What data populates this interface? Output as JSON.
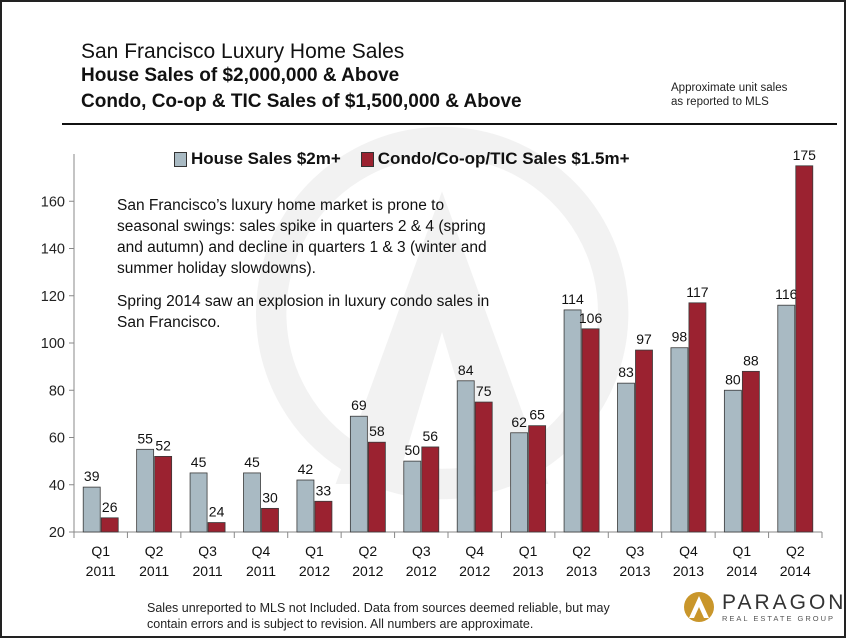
{
  "title": "San Francisco Luxury Home Sales",
  "subtitle1": "House Sales of $2,000,000 & Above",
  "subtitle2": "Condo, Co-op & TIC Sales of $1,500,000 & Above",
  "note_lines": [
    "Approximate unit sales",
    "as reported to MLS"
  ],
  "description_p1": "San Francisco’s luxury home market is prone to seasonal swings: sales spike in quarters 2 & 4 (spring and autumn) and decline in quarters 1 & 3 (winter and summer holiday slowdowns).",
  "description_p2": "Spring 2014 saw an explosion in luxury condo sales in San Francisco.",
  "footer_lines": [
    "Sales unreported to MLS not Included. Data from sources deemed reliable, but may",
    "contain errors and is subject to revision. All numbers are approximate."
  ],
  "logo": {
    "name": "PARAGON",
    "tagline": "REAL ESTATE GROUP",
    "icon": "paragon-mountain-logo-icon"
  },
  "colors": {
    "house": "#a9bac3",
    "condo": "#9b2230",
    "axis": "#888888"
  },
  "chart_data": {
    "type": "bar",
    "categories": [
      [
        "Q1",
        "2011"
      ],
      [
        "Q2",
        "2011"
      ],
      [
        "Q3",
        "2011"
      ],
      [
        "Q4",
        "2011"
      ],
      [
        "Q1",
        "2012"
      ],
      [
        "Q2",
        "2012"
      ],
      [
        "Q3",
        "2012"
      ],
      [
        "Q4",
        "2012"
      ],
      [
        "Q1",
        "2013"
      ],
      [
        "Q2",
        "2013"
      ],
      [
        "Q3",
        "2013"
      ],
      [
        "Q4",
        "2013"
      ],
      [
        "Q1",
        "2014"
      ],
      [
        "Q2",
        "2014"
      ]
    ],
    "series": [
      {
        "name": "House Sales $2m+",
        "values": [
          39,
          55,
          45,
          45,
          42,
          69,
          50,
          84,
          62,
          114,
          83,
          98,
          80,
          116
        ]
      },
      {
        "name": "Condo/Co-op/TIC Sales $1.5m+",
        "values": [
          26,
          52,
          24,
          30,
          33,
          58,
          56,
          75,
          65,
          106,
          97,
          117,
          88,
          175
        ]
      }
    ],
    "yticks": [
      20,
      40,
      60,
      80,
      100,
      120,
      140,
      160
    ],
    "ylim": [
      20,
      180
    ],
    "grid": false,
    "legend": "top"
  }
}
